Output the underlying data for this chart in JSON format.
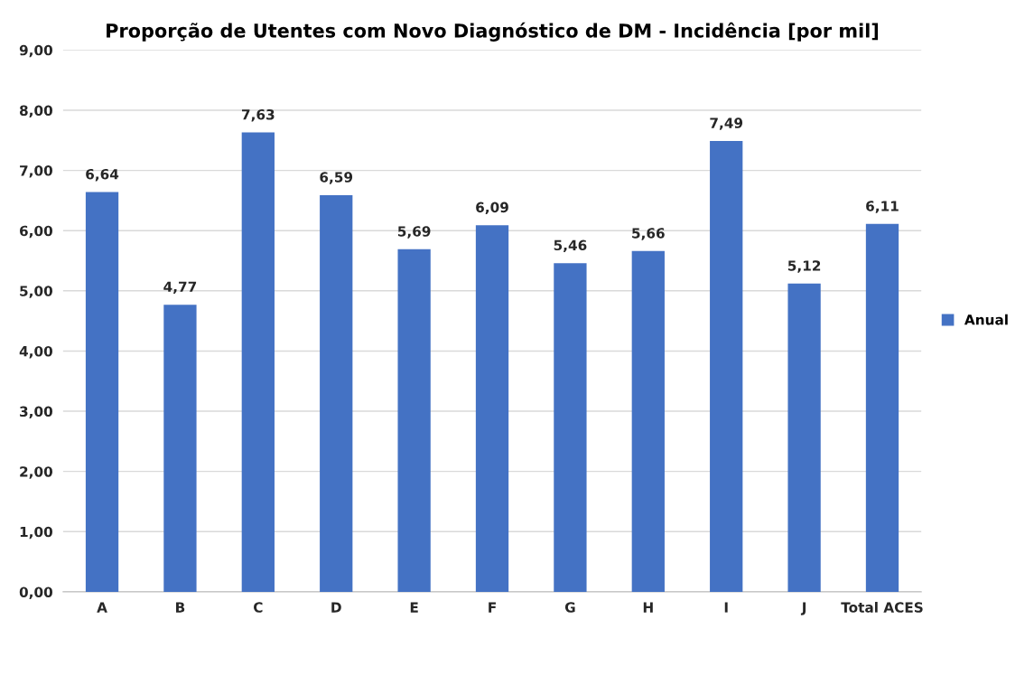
{
  "chart_data": {
    "type": "bar",
    "title": "Proporção de Utentes com Novo Diagnóstico de DM - Incidência [por mil]",
    "categories": [
      "A",
      "B",
      "C",
      "D",
      "E",
      "F",
      "G",
      "H",
      "I",
      "J",
      "Total ACES"
    ],
    "series": [
      {
        "name": "Anual",
        "color": "#4472c4",
        "values": [
          6.64,
          4.77,
          7.63,
          6.59,
          5.69,
          6.09,
          5.46,
          5.66,
          7.49,
          5.12,
          6.11
        ],
        "value_labels": [
          "6,64",
          "4,77",
          "7,63",
          "6,59",
          "5,69",
          "6,09",
          "5,46",
          "5,66",
          "7,49",
          "5,12",
          "6,11"
        ]
      }
    ],
    "ylim": [
      0,
      9
    ],
    "yticks": [
      {
        "value": 0,
        "label": "0,00"
      },
      {
        "value": 1,
        "label": "1,00"
      },
      {
        "value": 2,
        "label": "2,00"
      },
      {
        "value": 3,
        "label": "3,00"
      },
      {
        "value": 4,
        "label": "4,00"
      },
      {
        "value": 5,
        "label": "5,00"
      },
      {
        "value": 6,
        "label": "6,00"
      },
      {
        "value": 7,
        "label": "7,00"
      },
      {
        "value": 8,
        "label": "8,00"
      },
      {
        "value": 9,
        "label": "9,00"
      }
    ],
    "grid": "y",
    "legend": "right"
  }
}
